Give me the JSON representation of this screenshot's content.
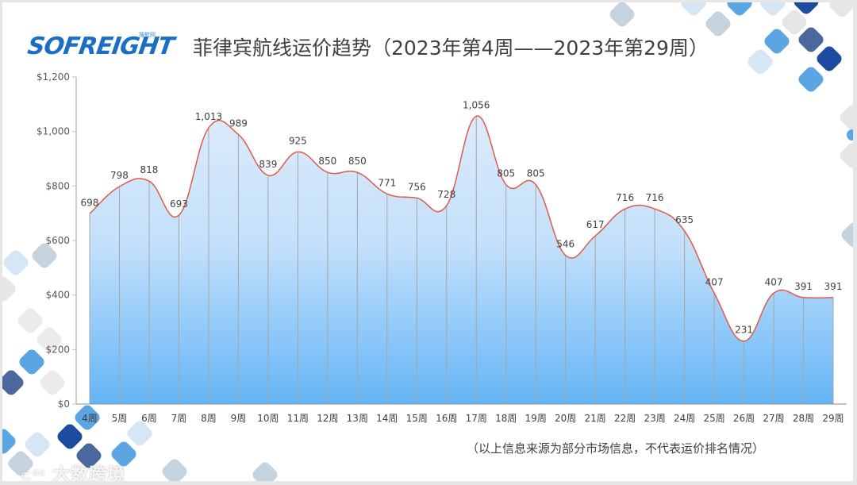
{
  "header": {
    "logo_text": "SOFREIGHT",
    "logo_sub": "搜航网",
    "title": "菲律宾航线运价趋势（2023年第4周——2023年第29周）"
  },
  "footer": {
    "note": "（以上信息来源为部分市场信息，不代表运价排名情况）",
    "watermark": "大数跨境"
  },
  "colors": {
    "line": "#e05a4a",
    "area_top": "#dbeafb",
    "area_bottom": "#64b5f6",
    "axis": "#bfbfbf"
  },
  "chart_data": {
    "type": "area",
    "title": "菲律宾航线运价趋势（2023年第4周——2023年第29周）",
    "xlabel": "",
    "ylabel": "",
    "categories": [
      "4周",
      "5周",
      "6周",
      "7周",
      "8周",
      "9周",
      "10周",
      "11周",
      "12周",
      "13周",
      "14周",
      "15周",
      "16周",
      "17周",
      "18周",
      "19周",
      "20周",
      "21周",
      "22周",
      "23周",
      "24周",
      "25周",
      "26周",
      "27周",
      "28周",
      "29周"
    ],
    "values": [
      698,
      798,
      818,
      693,
      1013,
      989,
      839,
      925,
      850,
      850,
      771,
      756,
      728,
      1056,
      805,
      805,
      546,
      617,
      716,
      716,
      635,
      407,
      231,
      407,
      391,
      391
    ],
    "data_labels": [
      "698",
      "798",
      "818",
      "693",
      "1,013",
      "989",
      "839",
      "925",
      "850",
      "850",
      "771",
      "756",
      "728",
      "1,056",
      "805",
      "805",
      "546",
      "617",
      "716",
      "716",
      "635",
      "407",
      "231",
      "407",
      "391",
      "391"
    ],
    "ylim": [
      0,
      1200
    ],
    "yticks": [
      0,
      200,
      400,
      600,
      800,
      1000,
      1200
    ],
    "ytick_labels": [
      "$0",
      "$200",
      "$400",
      "$600",
      "$800",
      "$1,000",
      "$1,200"
    ],
    "grid": false,
    "smooth": true,
    "legend": null
  }
}
